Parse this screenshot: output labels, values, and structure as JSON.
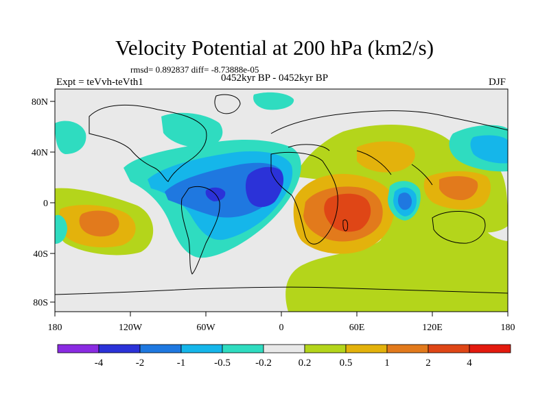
{
  "title": "Velocity Potential at 200 hPa (km2/s)",
  "stats": "rmsd= 0.892837 diff= -8.73888e-05",
  "left_label": "Expt = teVvh-teVth1",
  "center_label": "0452kyr BP - 0452kyr BP",
  "right_label": "DJF",
  "axes": {
    "lon_ticks": [
      "180",
      "120W",
      "60W",
      "0",
      "60E",
      "120E",
      "180"
    ],
    "lat_ticks": [
      "80N",
      "40N",
      "0",
      "40S",
      "80S"
    ]
  },
  "colorbar": {
    "labels": [
      "-4",
      "-2",
      "-1",
      "-0.5",
      "-0.2",
      "0.2",
      "0.5",
      "1",
      "2",
      "4"
    ],
    "colors": [
      "#8a2be2",
      "#2b32d8",
      "#1f78e0",
      "#15b6ea",
      "#2fdcc0",
      "#e9e9e9",
      "#b4d51b",
      "#e3b20c",
      "#e27a1c",
      "#df4616",
      "#e31a0e"
    ]
  }
}
